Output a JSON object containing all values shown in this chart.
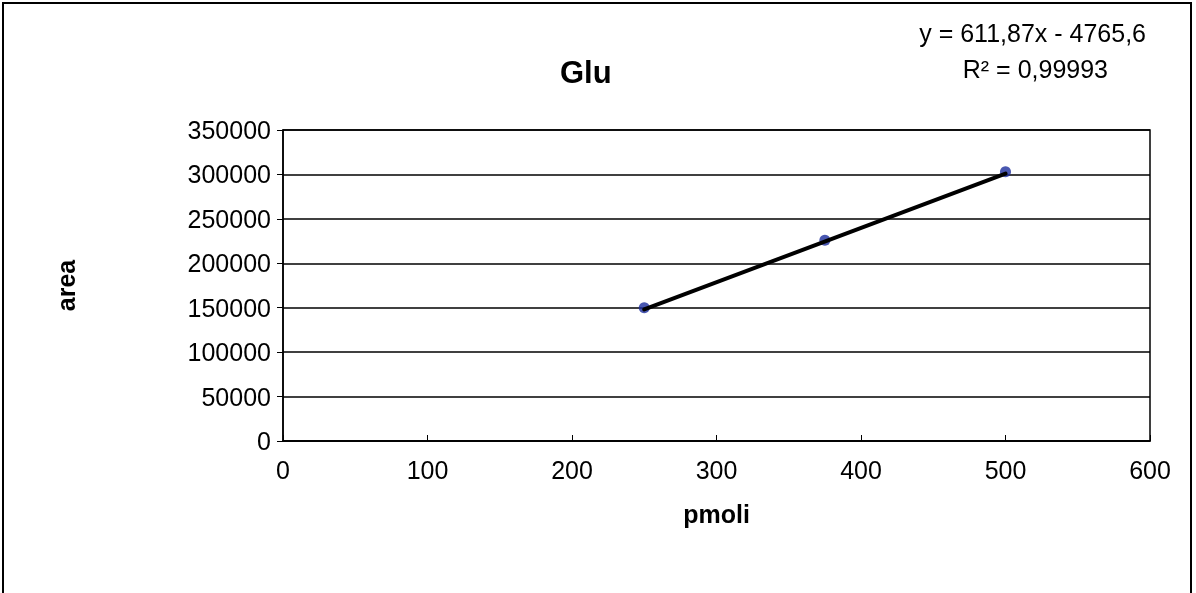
{
  "chart_data": {
    "type": "scatter",
    "title": "Glu",
    "xlabel": "pmoli",
    "ylabel": "area",
    "annotations": [
      "y = 611,87x - 4765,6",
      "R² = 0,99993"
    ],
    "series": [
      {
        "type": "scatter",
        "color": "#1c2d9c",
        "x": [
          250,
          375,
          500
        ],
        "values": [
          150000,
          226000,
          303000
        ],
        "marker": "circle"
      },
      {
        "type": "line",
        "color": "#000000",
        "x": [
          250,
          500
        ],
        "values": [
          148000,
          301000
        ],
        "marker": "none",
        "line_style": "solid"
      }
    ],
    "xlim": [
      0,
      600
    ],
    "xticks": [
      0,
      100,
      200,
      300,
      400,
      500,
      600
    ],
    "ylim": [
      0,
      350000
    ],
    "yticks": [
      0,
      50000,
      100000,
      150000,
      200000,
      250000,
      300000,
      350000
    ],
    "grid": "y"
  }
}
